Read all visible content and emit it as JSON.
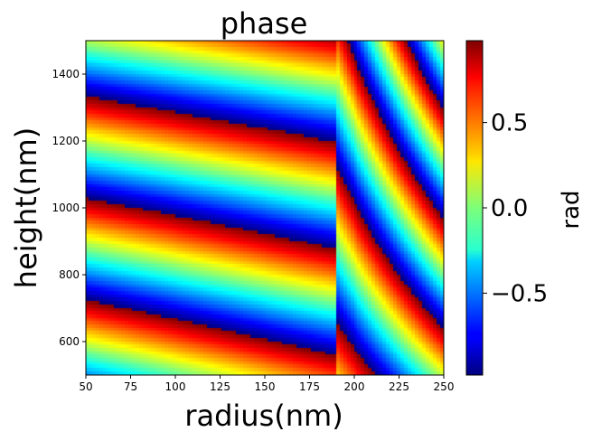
{
  "chart_data": {
    "type": "heatmap",
    "title": "phase",
    "xlabel": "radius(nm)",
    "ylabel": "height(nm)",
    "xlim": [
      50,
      250
    ],
    "ylim": [
      1500,
      500
    ],
    "x_ticks": [
      50,
      75,
      100,
      125,
      150,
      175,
      200,
      225,
      250
    ],
    "x_tick_labels": [
      "50",
      "75",
      "100",
      "125",
      "150",
      "175",
      "200",
      "225",
      "250"
    ],
    "y_ticks": [
      600,
      800,
      1000,
      1200,
      1400
    ],
    "y_tick_labels": [
      "600",
      "800",
      "1000",
      "1200",
      "1400"
    ],
    "colormap": "jet",
    "colorbar": {
      "label": "rad",
      "range": [
        -0.98,
        0.98
      ],
      "ticks": [
        0.5,
        0.0,
        -0.5
      ],
      "tick_labels": [
        "0.5",
        "0.0",
        "−0.5"
      ]
    },
    "grid": false,
    "value_description": "wrapped phase (rad) as a function of radius and height"
  }
}
